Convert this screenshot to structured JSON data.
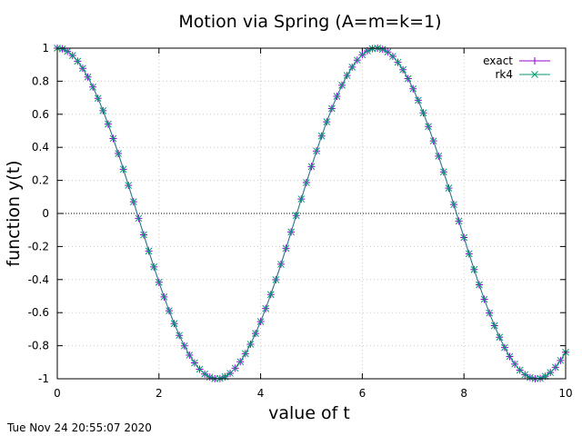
{
  "chart_data": {
    "type": "line",
    "title": "Motion via Spring (A=m=k=1)",
    "xlabel": "value of t",
    "ylabel": "function y(t)",
    "xlim": [
      0,
      10
    ],
    "ylim": [
      -1,
      1
    ],
    "x_ticks": [
      "0",
      "2",
      "4",
      "6",
      "8",
      "10"
    ],
    "y_ticks": [
      "-1",
      "-0.8",
      "-0.6",
      "-0.4",
      "-0.2",
      "0",
      "0.2",
      "0.4",
      "0.6",
      "0.8",
      "1"
    ],
    "grid": true,
    "legend_position": "top-right",
    "function": "y = cos(t)",
    "t_step": 0.1,
    "series": [
      {
        "name": "exact",
        "color": "#9400d3",
        "marker": "+"
      },
      {
        "name": "rk4",
        "color": "#009e73",
        "marker": "x"
      }
    ]
  },
  "timestamp": "Tue Nov 24 20:55:07 2020"
}
